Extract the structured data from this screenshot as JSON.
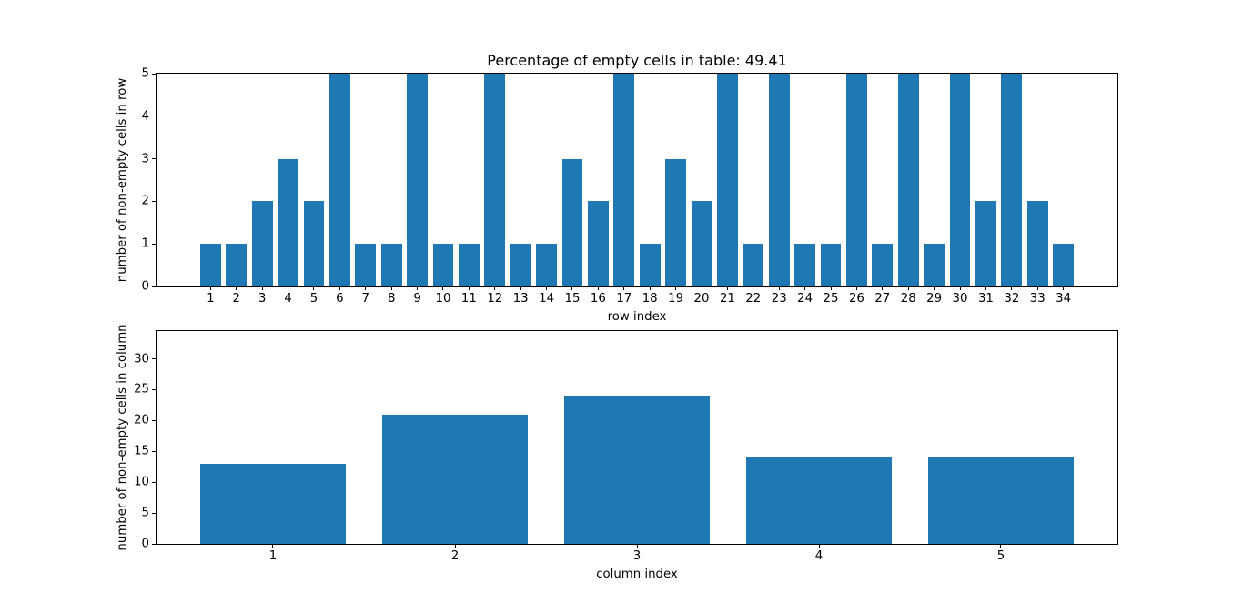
{
  "figure": {
    "background": "#ffffff",
    "bar_color": "#1f77b4",
    "text_color": "#000000"
  },
  "chart_data": [
    {
      "type": "bar",
      "title": "Percentage of empty cells in table: 49.41",
      "xlabel": "row index",
      "ylabel": "number of non-empty cells in row",
      "categories": [
        1,
        2,
        3,
        4,
        5,
        6,
        7,
        8,
        9,
        10,
        11,
        12,
        13,
        14,
        15,
        16,
        17,
        18,
        19,
        20,
        21,
        22,
        23,
        24,
        25,
        26,
        27,
        28,
        29,
        30,
        31,
        32,
        33,
        34
      ],
      "values": [
        1,
        1,
        2,
        3,
        2,
        5,
        1,
        1,
        5,
        1,
        1,
        5,
        1,
        1,
        3,
        2,
        5,
        1,
        3,
        2,
        5,
        1,
        5,
        1,
        1,
        5,
        1,
        5,
        1,
        5,
        2,
        5,
        2,
        1
      ],
      "yticks": [
        0,
        1,
        2,
        3,
        4,
        5
      ],
      "ylim": [
        0,
        5
      ],
      "xlim": [
        -1.09,
        36.09
      ],
      "bar_width": 0.8,
      "bar_color": "#1f77b4",
      "grid": false,
      "legend": null
    },
    {
      "type": "bar",
      "title": "",
      "xlabel": "column index",
      "ylabel": "number of non-empty cells in column",
      "categories": [
        1,
        2,
        3,
        4,
        5
      ],
      "values": [
        13,
        21,
        24,
        14,
        14
      ],
      "yticks": [
        0,
        5,
        10,
        15,
        20,
        25,
        30
      ],
      "ylim": [
        0,
        34.5
      ],
      "xlim": [
        0.36,
        5.64
      ],
      "bar_width": 0.8,
      "bar_color": "#1f77b4",
      "grid": false,
      "legend": null
    }
  ]
}
